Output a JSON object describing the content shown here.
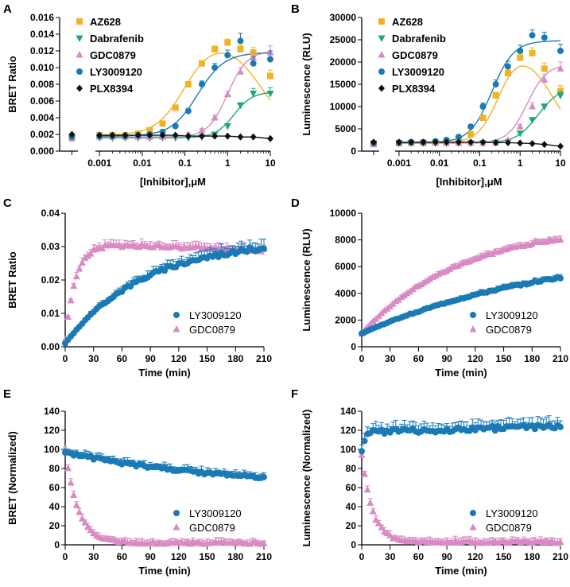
{
  "colors": {
    "AZ628": "#f0b323",
    "Dabrafenib": "#1fa67a",
    "GDC0879": "#d98ac5",
    "LY3009120": "#1a7ab5",
    "PLX8394": "#111111"
  },
  "chart_data": [
    {
      "panel": "A",
      "type": "scatter",
      "xscale": "log",
      "xlabel": "[Inhibitor],μM",
      "ylabel": "BRET Ratio",
      "ylim": [
        0,
        0.016
      ],
      "yticks": [
        0,
        0.002,
        0.004,
        0.006,
        0.008,
        0.01,
        0.012,
        0.014,
        0.016
      ],
      "ytick_labels": [
        "0.000",
        "0.002",
        "0.004",
        "0.006",
        "0.008",
        "0.010",
        "0.012",
        "0.014",
        "0.016"
      ],
      "xticks": [
        0.001,
        0.01,
        0.1,
        1,
        10
      ],
      "xtick_labels": [
        "0.001",
        "0.01",
        "0.1",
        "1",
        "10"
      ],
      "xlim": [
        0.0008,
        10
      ],
      "control_label_x": 0.00035,
      "legend": [
        "AZ628",
        "Dabrafenib",
        "GDC0879",
        "LY3009120",
        "PLX8394"
      ],
      "series": [
        {
          "name": "AZ628",
          "marker": "square",
          "control": 0.0017,
          "x": [
            0.001,
            0.002,
            0.004,
            0.008,
            0.015,
            0.03,
            0.06,
            0.12,
            0.25,
            0.5,
            1,
            2,
            4,
            10
          ],
          "y": [
            0.0019,
            0.0019,
            0.0019,
            0.0021,
            0.0025,
            0.0033,
            0.0052,
            0.008,
            0.0105,
            0.0122,
            0.013,
            0.0122,
            0.0118,
            0.009
          ],
          "err": [
            0.0001,
            0.0001,
            0.0001,
            0.0001,
            0.0001,
            0.0002,
            0.0002,
            0.0003,
            0.0003,
            0.0004,
            0.0004,
            0.0005,
            0.0006,
            0.0007
          ],
          "fit": {
            "type": "bell",
            "base": 0.0019,
            "top": 0.0135,
            "ec50": 0.1,
            "h": 1.3,
            "ic50": 6,
            "h2": 1.1
          }
        },
        {
          "name": "Dabrafenib",
          "marker": "triangle-down",
          "control": 0.0016,
          "x": [
            0.001,
            0.002,
            0.004,
            0.008,
            0.015,
            0.03,
            0.06,
            0.12,
            0.25,
            0.5,
            1,
            2,
            4,
            10
          ],
          "y": [
            0.0016,
            0.0016,
            0.0016,
            0.0016,
            0.0016,
            0.0016,
            0.0016,
            0.0016,
            0.0017,
            0.002,
            0.003,
            0.0055,
            0.0069,
            0.0069
          ],
          "err": [
            0.0001,
            0.0001,
            0.0001,
            0.0001,
            0.0001,
            0.0001,
            0.0001,
            0.0001,
            0.0001,
            0.0001,
            0.0002,
            0.0003,
            0.0006,
            0.0007
          ],
          "fit": {
            "type": "sig",
            "base": 0.0016,
            "top": 0.0071,
            "ec50": 1.4,
            "h": 2.0
          }
        },
        {
          "name": "GDC0879",
          "marker": "triangle-up",
          "control": 0.0015,
          "x": [
            0.001,
            0.002,
            0.004,
            0.008,
            0.015,
            0.03,
            0.06,
            0.12,
            0.25,
            0.5,
            1,
            2,
            4,
            10
          ],
          "y": [
            0.0017,
            0.0017,
            0.0017,
            0.0017,
            0.0017,
            0.0017,
            0.0018,
            0.002,
            0.0025,
            0.004,
            0.0068,
            0.0095,
            0.0112,
            0.0118
          ],
          "err": [
            0.0001,
            0.0001,
            0.0001,
            0.0001,
            0.0001,
            0.0001,
            0.0001,
            0.0002,
            0.0002,
            0.0003,
            0.0004,
            0.0005,
            0.0006,
            0.0008
          ],
          "fit": {
            "type": "sig",
            "base": 0.0017,
            "top": 0.012,
            "ec50": 1.0,
            "h": 1.9
          }
        },
        {
          "name": "LY3009120",
          "marker": "circle",
          "control": 0.0017,
          "x": [
            0.001,
            0.002,
            0.004,
            0.008,
            0.015,
            0.03,
            0.06,
            0.12,
            0.25,
            0.5,
            1,
            2,
            4,
            10
          ],
          "y": [
            0.0018,
            0.0018,
            0.0018,
            0.0019,
            0.002,
            0.0023,
            0.003,
            0.0048,
            0.008,
            0.01,
            0.0115,
            0.0132,
            0.0105,
            0.011
          ],
          "err": [
            0.0001,
            0.0001,
            0.0001,
            0.0001,
            0.0001,
            0.0001,
            0.0002,
            0.0003,
            0.0004,
            0.0005,
            0.0006,
            0.0009,
            0.0008,
            0.001
          ],
          "fit": {
            "type": "sig",
            "base": 0.0018,
            "top": 0.0118,
            "ec50": 0.2,
            "h": 1.4
          }
        },
        {
          "name": "PLX8394",
          "marker": "diamond",
          "control": 0.002,
          "x": [
            0.001,
            0.002,
            0.004,
            0.008,
            0.015,
            0.03,
            0.06,
            0.12,
            0.25,
            0.5,
            1,
            2,
            4,
            10
          ],
          "y": [
            0.0019,
            0.0019,
            0.0019,
            0.0019,
            0.0019,
            0.0019,
            0.0019,
            0.0018,
            0.0018,
            0.0018,
            0.0018,
            0.0017,
            0.0017,
            0.0015
          ],
          "err": [
            0,
            0,
            0,
            0,
            0,
            0,
            0,
            0,
            0,
            0,
            0,
            0,
            0,
            0
          ],
          "fit": {
            "type": "line"
          }
        }
      ]
    },
    {
      "panel": "B",
      "type": "scatter",
      "xscale": "log",
      "xlabel": "[Inhibitor],μM",
      "ylabel": "Luminescence (RLU)",
      "ylim": [
        0,
        30000
      ],
      "yticks": [
        0,
        5000,
        10000,
        15000,
        20000,
        25000,
        30000
      ],
      "ytick_labels": [
        "0",
        "5000",
        "10000",
        "15000",
        "20000",
        "25000",
        "30000"
      ],
      "xticks": [
        0.001,
        0.01,
        0.1,
        1,
        10
      ],
      "xtick_labels": [
        "0.001",
        "0.01",
        "0.1",
        "1",
        "10"
      ],
      "xlim": [
        0.0008,
        10
      ],
      "control_label_x": 0.00035,
      "legend": [
        "AZ628",
        "Dabrafenib",
        "GDC0879",
        "LY3009120",
        "PLX8394"
      ],
      "series": [
        {
          "name": "AZ628",
          "marker": "square",
          "control": 1700,
          "x": [
            0.001,
            0.002,
            0.004,
            0.008,
            0.015,
            0.03,
            0.06,
            0.12,
            0.25,
            0.5,
            1,
            2,
            4,
            10
          ],
          "y": [
            1800,
            1900,
            1900,
            2000,
            2200,
            2600,
            3800,
            7500,
            12500,
            17500,
            21000,
            22000,
            18500,
            13500
          ],
          "err": [
            100,
            100,
            100,
            100,
            150,
            200,
            300,
            500,
            700,
            900,
            1000,
            1200,
            1300,
            1200
          ],
          "fit": {
            "type": "bell",
            "base": 1800,
            "top": 23500,
            "ec50": 0.3,
            "h": 1.7,
            "ic50": 6,
            "h2": 1.2
          }
        },
        {
          "name": "Dabrafenib",
          "marker": "triangle-down",
          "control": 1700,
          "x": [
            0.001,
            0.002,
            0.004,
            0.008,
            0.015,
            0.03,
            0.06,
            0.12,
            0.25,
            0.5,
            1,
            2,
            4,
            10
          ],
          "y": [
            1800,
            1800,
            1800,
            1800,
            1800,
            1800,
            1800,
            1800,
            1900,
            2000,
            4000,
            7000,
            10000,
            12500
          ],
          "err": [
            100,
            100,
            100,
            100,
            100,
            100,
            100,
            100,
            100,
            150,
            300,
            400,
            600,
            800
          ],
          "fit": {
            "type": "sig",
            "base": 1800,
            "top": 14500,
            "ec50": 2.8,
            "h": 1.6
          }
        },
        {
          "name": "GDC0879",
          "marker": "triangle-up",
          "control": 1500,
          "x": [
            0.001,
            0.002,
            0.004,
            0.008,
            0.015,
            0.03,
            0.06,
            0.12,
            0.25,
            0.5,
            1,
            2,
            4,
            10
          ],
          "y": [
            1800,
            1800,
            1800,
            1800,
            1800,
            1800,
            1800,
            1800,
            1900,
            2500,
            5500,
            10000,
            16000,
            18500
          ],
          "err": [
            100,
            100,
            100,
            100,
            100,
            100,
            100,
            100,
            150,
            200,
            500,
            900,
            1200,
            1500
          ],
          "fit": {
            "type": "sig",
            "base": 1800,
            "top": 19500,
            "ec50": 1.5,
            "h": 1.8
          }
        },
        {
          "name": "LY3009120",
          "marker": "circle",
          "control": 1800,
          "x": [
            0.001,
            0.002,
            0.004,
            0.008,
            0.015,
            0.03,
            0.06,
            0.12,
            0.25,
            0.5,
            1,
            2,
            4,
            10
          ],
          "y": [
            1900,
            2000,
            2000,
            2200,
            2500,
            3200,
            5500,
            10000,
            15000,
            19000,
            22500,
            26000,
            25500,
            22500
          ],
          "err": [
            100,
            100,
            100,
            150,
            200,
            300,
            500,
            800,
            1000,
            1200,
            1300,
            1200,
            1200,
            1500
          ],
          "fit": {
            "type": "sig",
            "base": 1900,
            "top": 24800,
            "ec50": 0.2,
            "h": 1.6
          }
        },
        {
          "name": "PLX8394",
          "marker": "diamond",
          "control": 2000,
          "x": [
            0.001,
            0.002,
            0.004,
            0.008,
            0.015,
            0.03,
            0.06,
            0.12,
            0.25,
            0.5,
            1,
            2,
            4,
            10
          ],
          "y": [
            2000,
            2000,
            2000,
            2000,
            2000,
            2000,
            2000,
            2000,
            1900,
            1900,
            1800,
            1700,
            1500,
            1100
          ],
          "err": [
            0,
            0,
            0,
            0,
            0,
            0,
            0,
            0,
            0,
            0,
            0,
            0,
            0,
            0
          ],
          "fit": {
            "type": "line"
          }
        }
      ]
    },
    {
      "panel": "C",
      "type": "scatter",
      "xscale": "linear",
      "xlabel": "Time (min)",
      "ylabel": "BRET Ratio",
      "xlim": [
        0,
        210
      ],
      "xticks": [
        0,
        30,
        60,
        90,
        120,
        150,
        180,
        210
      ],
      "ylim": [
        0,
        0.04
      ],
      "yticks": [
        0,
        0.01,
        0.02,
        0.03,
        0.04
      ],
      "ytick_labels": [
        "0.00",
        "0.01",
        "0.02",
        "0.03",
        "0.04"
      ],
      "legend": [
        "LY3009120",
        "GDC0879"
      ],
      "series": [
        {
          "name": "LY3009120",
          "marker": "circle",
          "model": "rise",
          "plateau": 0.032,
          "k": 0.012,
          "start": 0.001,
          "err_frac": 0.1
        },
        {
          "name": "GDC0879",
          "marker": "triangle-up",
          "model": "rise",
          "plateau": 0.031,
          "k": 0.09,
          "start": 0.002,
          "err_frac": 0.06,
          "drift": -1e-05
        }
      ]
    },
    {
      "panel": "D",
      "type": "scatter",
      "xscale": "linear",
      "xlabel": "Time (min)",
      "ylabel": "Luminescence (RLU)",
      "xlim": [
        0,
        210
      ],
      "xticks": [
        0,
        30,
        60,
        90,
        120,
        150,
        180,
        210
      ],
      "ylim": [
        0,
        10000
      ],
      "yticks": [
        0,
        2000,
        4000,
        6000,
        8000,
        10000
      ],
      "ytick_labels": [
        "0",
        "2000",
        "4000",
        "6000",
        "8000",
        "10000"
      ],
      "legend": [
        "LY3009120",
        "GDC0879"
      ],
      "series": [
        {
          "name": "LY3009120",
          "marker": "circle",
          "model": "rise",
          "plateau": 7600,
          "k": 0.0048,
          "start": 1000,
          "err_frac": 0.06
        },
        {
          "name": "GDC0879",
          "marker": "triangle-up",
          "model": "rise",
          "plateau": 9200,
          "k": 0.0095,
          "start": 1000,
          "err_frac": 0.04
        }
      ]
    },
    {
      "panel": "E",
      "type": "scatter",
      "xscale": "linear",
      "xlabel": "Time (min)",
      "ylabel": "BRET (Normalized)",
      "xlim": [
        0,
        210
      ],
      "xticks": [
        0,
        30,
        60,
        90,
        120,
        150,
        180,
        210
      ],
      "ylim": [
        0,
        140
      ],
      "yticks": [
        0,
        20,
        40,
        60,
        80,
        100,
        120,
        140
      ],
      "ytick_labels": [
        "0",
        "20",
        "40",
        "60",
        "80",
        "100",
        "120",
        "140"
      ],
      "legend": [
        "LY3009120",
        "GDC0879"
      ],
      "series": [
        {
          "name": "LY3009120",
          "marker": "circle",
          "model": "decay",
          "start": 97,
          "end": 60,
          "k": 0.006,
          "err_abs": 6
        },
        {
          "name": "GDC0879",
          "marker": "triangle-up",
          "model": "decay",
          "start": 100,
          "end": 2,
          "k": 0.075,
          "err_abs": 5
        }
      ]
    },
    {
      "panel": "F",
      "type": "scatter",
      "xscale": "linear",
      "xlabel": "Time (min)",
      "ylabel": "Luminescence (Normalized)",
      "xlim": [
        0,
        210
      ],
      "xticks": [
        0,
        30,
        60,
        90,
        120,
        150,
        180,
        210
      ],
      "ylim": [
        0,
        140
      ],
      "yticks": [
        0,
        20,
        40,
        60,
        80,
        100,
        120,
        140
      ],
      "ytick_labels": [
        "0",
        "20",
        "40",
        "60",
        "80",
        "100",
        "120",
        "140"
      ],
      "legend": [
        "LY3009120",
        "GDC0879"
      ],
      "series": [
        {
          "name": "LY3009120",
          "marker": "circle",
          "model": "rise",
          "plateau": 118,
          "k": 0.3,
          "start": 100,
          "err_abs": 10,
          "slope": 0.03
        },
        {
          "name": "GDC0879",
          "marker": "triangle-up",
          "model": "decay",
          "start": 95,
          "end": 3,
          "k": 0.09,
          "err_abs": 5
        }
      ]
    }
  ]
}
